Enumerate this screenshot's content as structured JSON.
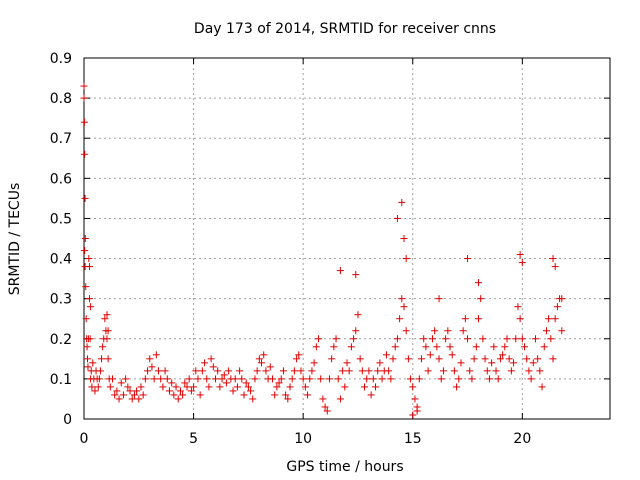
{
  "chart_data": {
    "type": "scatter",
    "title": "Day 173 of 2014, SRMTID for receiver cnns",
    "xlabel": "GPS time / hours",
    "ylabel": "SRMTID / TECUs",
    "xlim": [
      0,
      24
    ],
    "ylim": [
      0,
      0.9
    ],
    "xticks": [
      0,
      5,
      10,
      15,
      20
    ],
    "xtick_labels": [
      "0",
      "5",
      "10",
      "15",
      "20"
    ],
    "yticks": [
      0,
      0.1,
      0.2,
      0.3,
      0.4,
      0.5,
      0.6,
      0.7,
      0.8,
      0.9
    ],
    "ytick_labels": [
      "0",
      "0.1",
      "0.2",
      "0.3",
      "0.4",
      "0.5",
      "0.6",
      "0.7",
      "0.8",
      "0.9"
    ],
    "grid": true,
    "marker": "+",
    "color": "#e00000",
    "series": [
      {
        "name": "SRMTID",
        "x": [
          0.02,
          0.03,
          0.05,
          0.06,
          0.08,
          0.1,
          0.12,
          0.14,
          0.16,
          0.18,
          0.2,
          0.22,
          0.25,
          0.28,
          0.3,
          0.33,
          0.36,
          0.4,
          0.45,
          0.5,
          0.55,
          0.6,
          0.65,
          0.7,
          0.75,
          0.8,
          0.85,
          0.9,
          0.95,
          1.0,
          1.05,
          1.1,
          1.15,
          1.2,
          1.3,
          1.4,
          1.5,
          1.6,
          1.7,
          1.8,
          1.9,
          2.0,
          2.1,
          2.2,
          2.3,
          2.4,
          2.5,
          2.6,
          2.7,
          2.8,
          2.9,
          3.0,
          3.1,
          3.2,
          3.3,
          3.4,
          3.5,
          3.6,
          3.7,
          3.8,
          3.9,
          4.0,
          4.1,
          4.2,
          4.3,
          4.4,
          4.5,
          4.6,
          4.7,
          4.8,
          4.9,
          5.0,
          5.1,
          5.2,
          5.3,
          5.4,
          5.5,
          5.6,
          5.7,
          5.8,
          5.9,
          6.0,
          6.1,
          6.2,
          6.3,
          6.4,
          6.5,
          6.6,
          6.7,
          6.8,
          6.9,
          7.0,
          7.1,
          7.2,
          7.3,
          7.4,
          7.5,
          7.6,
          7.7,
          7.8,
          7.9,
          8.0,
          8.1,
          8.2,
          8.3,
          8.4,
          8.5,
          8.6,
          8.7,
          8.8,
          8.9,
          9.0,
          9.1,
          9.2,
          9.3,
          9.4,
          9.5,
          9.6,
          9.7,
          9.8,
          9.9,
          10.0,
          10.1,
          10.2,
          10.3,
          10.4,
          10.5,
          10.6,
          10.7,
          10.8,
          10.9,
          11.0,
          11.1,
          11.2,
          11.3,
          11.4,
          11.5,
          11.6,
          11.7,
          11.8,
          11.9,
          12.0,
          12.1,
          12.2,
          12.3,
          12.4,
          12.5,
          12.6,
          12.7,
          12.8,
          12.9,
          13.0,
          13.1,
          13.2,
          13.3,
          13.4,
          13.5,
          13.6,
          13.7,
          13.8,
          13.9,
          14.0,
          14.1,
          14.2,
          14.3,
          14.4,
          14.5,
          14.6,
          14.7,
          14.8,
          14.9,
          15.0,
          15.1,
          15.2,
          15.3,
          15.4,
          15.5,
          15.6,
          15.7,
          15.8,
          15.9,
          16.0,
          16.1,
          16.2,
          16.3,
          16.4,
          16.5,
          16.6,
          16.7,
          16.8,
          16.9,
          17.0,
          17.1,
          17.2,
          17.3,
          17.4,
          17.5,
          17.6,
          17.7,
          17.8,
          17.9,
          18.0,
          18.1,
          18.2,
          18.3,
          18.4,
          18.5,
          18.6,
          18.7,
          18.8,
          18.9,
          19.0,
          19.1,
          19.2,
          19.3,
          19.4,
          19.5,
          19.6,
          19.7,
          19.8,
          19.9,
          20.0,
          20.1,
          20.2,
          20.3,
          20.4,
          20.5,
          20.6,
          20.7,
          20.8,
          20.9,
          21.0,
          21.1,
          21.2,
          21.3,
          21.4,
          21.5,
          21.6,
          21.7,
          21.8,
          0.0,
          0.0,
          0.03,
          0.05,
          0.25,
          0.3,
          1.05,
          1.1,
          11.7,
          12.4,
          14.3,
          14.5,
          14.6,
          14.7,
          15.0,
          15.2,
          16.2,
          17.5,
          18.0,
          19.9,
          20.0,
          21.4,
          21.5,
          21.8
        ],
        "y": [
          0.74,
          0.66,
          0.55,
          0.45,
          0.33,
          0.25,
          0.2,
          0.18,
          0.15,
          0.13,
          0.2,
          0.4,
          0.38,
          0.2,
          0.1,
          0.12,
          0.08,
          0.14,
          0.1,
          0.07,
          0.12,
          0.1,
          0.08,
          0.1,
          0.12,
          0.15,
          0.18,
          0.2,
          0.25,
          0.22,
          0.2,
          0.15,
          0.1,
          0.08,
          0.1,
          0.06,
          0.07,
          0.05,
          0.09,
          0.06,
          0.1,
          0.08,
          0.07,
          0.05,
          0.06,
          0.07,
          0.05,
          0.08,
          0.06,
          0.1,
          0.12,
          0.15,
          0.13,
          0.1,
          0.16,
          0.12,
          0.1,
          0.08,
          0.12,
          0.1,
          0.07,
          0.09,
          0.06,
          0.08,
          0.05,
          0.07,
          0.06,
          0.09,
          0.08,
          0.1,
          0.07,
          0.08,
          0.12,
          0.1,
          0.06,
          0.12,
          0.14,
          0.1,
          0.08,
          0.15,
          0.13,
          0.1,
          0.12,
          0.08,
          0.1,
          0.11,
          0.09,
          0.12,
          0.1,
          0.07,
          0.1,
          0.08,
          0.12,
          0.1,
          0.06,
          0.09,
          0.08,
          0.07,
          0.05,
          0.1,
          0.12,
          0.15,
          0.14,
          0.16,
          0.12,
          0.1,
          0.13,
          0.1,
          0.06,
          0.08,
          0.09,
          0.1,
          0.12,
          0.06,
          0.05,
          0.08,
          0.1,
          0.12,
          0.15,
          0.16,
          0.12,
          0.1,
          0.08,
          0.06,
          0.1,
          0.12,
          0.14,
          0.18,
          0.2,
          0.1,
          0.05,
          0.03,
          0.02,
          0.1,
          0.15,
          0.18,
          0.2,
          0.1,
          0.05,
          0.12,
          0.08,
          0.14,
          0.12,
          0.18,
          0.2,
          0.22,
          0.26,
          0.15,
          0.12,
          0.08,
          0.1,
          0.12,
          0.06,
          0.1,
          0.08,
          0.12,
          0.14,
          0.1,
          0.12,
          0.16,
          0.12,
          0.1,
          0.15,
          0.18,
          0.2,
          0.25,
          0.3,
          0.28,
          0.22,
          0.15,
          0.1,
          0.08,
          0.05,
          0.03,
          0.1,
          0.15,
          0.2,
          0.18,
          0.12,
          0.16,
          0.2,
          0.22,
          0.18,
          0.15,
          0.1,
          0.12,
          0.2,
          0.22,
          0.18,
          0.16,
          0.12,
          0.08,
          0.1,
          0.14,
          0.22,
          0.25,
          0.2,
          0.12,
          0.1,
          0.15,
          0.18,
          0.25,
          0.3,
          0.2,
          0.15,
          0.12,
          0.1,
          0.14,
          0.18,
          0.12,
          0.1,
          0.15,
          0.16,
          0.18,
          0.2,
          0.15,
          0.12,
          0.14,
          0.2,
          0.28,
          0.25,
          0.2,
          0.18,
          0.15,
          0.12,
          0.1,
          0.14,
          0.2,
          0.15,
          0.12,
          0.08,
          0.18,
          0.22,
          0.25,
          0.2,
          0.15,
          0.25,
          0.28,
          0.3,
          0.22,
          0.83,
          0.8,
          0.42,
          0.38,
          0.3,
          0.28,
          0.26,
          0.22,
          0.37,
          0.36,
          0.5,
          0.54,
          0.45,
          0.4,
          0.01,
          0.02,
          0.3,
          0.4,
          0.34,
          0.41,
          0.39,
          0.4,
          0.38,
          0.3
        ]
      }
    ]
  }
}
